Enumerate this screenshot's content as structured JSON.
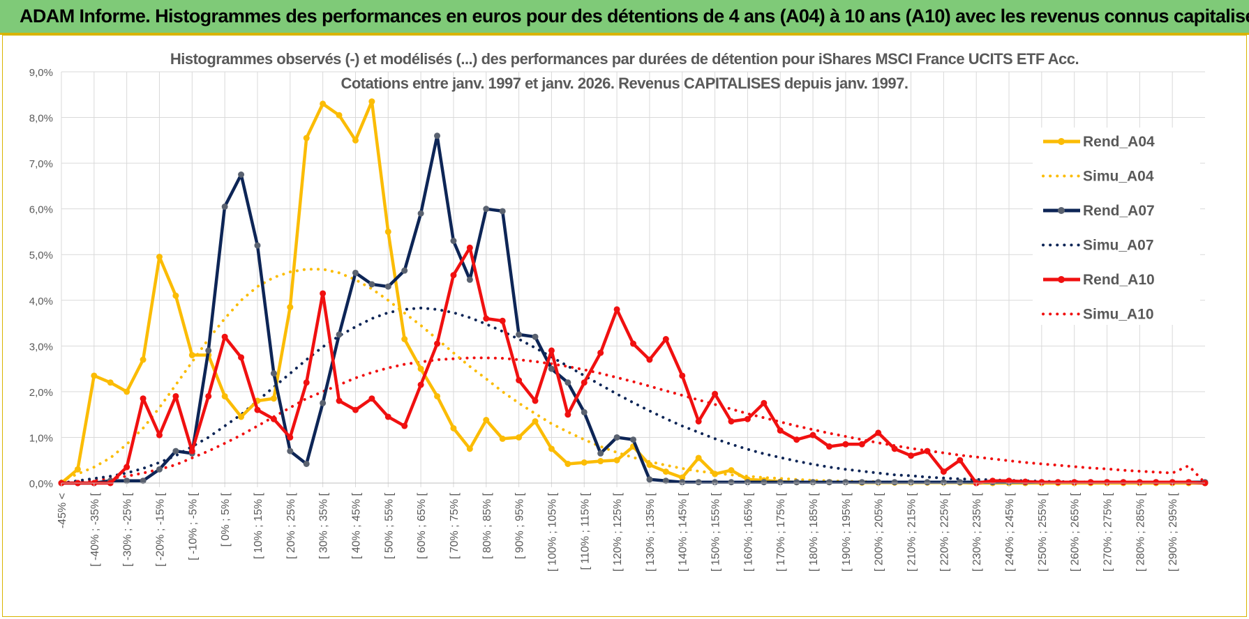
{
  "header": {
    "banner_title": "ADAM Informe. Histogrammes des performances en euros pour des détentions de 4 ans (A04) à 10 ans (A10) avec les revenus connus capitalisés"
  },
  "colors": {
    "banner_bg": "#7fca78",
    "banner_border": "#d9b400",
    "A04": "#fbbc05",
    "A07": "#0d2556",
    "A10": "#f01010",
    "marker_A07": "#5a6270",
    "grid": "#d9d9d9",
    "text": "#595959"
  },
  "chart_data": {
    "type": "line",
    "title": "Histogrammes observés (-) et modélisés (...) des performances par durées de détention pour iShares MSCI France UCITS ETF Acc.",
    "subtitle": "Cotations entre janv. 1997 et janv. 2026. Revenus CAPITALISES depuis janv. 1997.",
    "xlabel": "",
    "ylabel": "",
    "ylim": [
      0,
      9
    ],
    "y_ticks": [
      "0,0%",
      "1,0%",
      "2,0%",
      "3,0%",
      "4,0%",
      "5,0%",
      "6,0%",
      "7,0%",
      "8,0%",
      "9,0%"
    ],
    "grid": true,
    "legend_position": "right",
    "categories": [
      "-45% <",
      "[ -45% ; -40% [",
      "[ -40% ; -35% [",
      "[ -35% ; -30% [",
      "[ -30% ; -25% [",
      "[ -25% ; -20% [",
      "[ -20% ; -15% [",
      "[ -15% ; -10% [",
      "[ -10% ; -5% [",
      "[ -5% ; 0% [",
      "[ 0% ; 5% [",
      "[ 5% ; 10% [",
      "[ 10% ; 15% [",
      "[ 15% ; 20% [",
      "[ 20% ; 25% [",
      "[ 25% ; 30% [",
      "[ 30% ; 35% [",
      "[ 35% ; 40% [",
      "[ 40% ; 45% [",
      "[ 45% ; 50% [",
      "[ 50% ; 55% [",
      "[ 55% ; 60% [",
      "[ 60% ; 65% [",
      "[ 65% ; 70% [",
      "[ 70% ; 75% [",
      "[ 75% ; 80% [",
      "[ 80% ; 85% [",
      "[ 85% ; 90% [",
      "[ 90% ; 95% [",
      "[ 95% ; 100% [",
      "[ 100% ; 105% [",
      "[ 105% ; 110% [",
      "[ 110% ; 115% [",
      "[ 115% ; 120% [",
      "[ 120% ; 125% [",
      "[ 125% ; 130% [",
      "[ 130% ; 135% [",
      "[ 135% ; 140% [",
      "[ 140% ; 145% [",
      "[ 145% ; 150% [",
      "[ 150% ; 155% [",
      "[ 155% ; 160% [",
      "[ 160% ; 165% [",
      "[ 165% ; 170% [",
      "[ 170% ; 175% [",
      "[ 175% ; 180% [",
      "[ 180% ; 185% [",
      "[ 185% ; 190% [",
      "[ 190% ; 195% [",
      "[ 195% ; 200% [",
      "[ 200% ; 205% [",
      "[ 205% ; 210% [",
      "[ 210% ; 215% [",
      "[ 215% ; 220% [",
      "[ 220% ; 225% [",
      "[ 225% ; 230% [",
      "[ 230% ; 235% [",
      "[ 235% ; 240% [",
      "[ 240% ; 245% [",
      "[ 245% ; 250% [",
      "[ 250% ; 255% [",
      "[ 255% ; 260% [",
      "[ 260% ; 265% [",
      "[ 265% ; 270% [",
      "[ 270% ; 275% [",
      "[ 275% ; 280% [",
      "[ 280% ; 285% [",
      "[ 285% ; 290% [",
      "[ 290% ; 295% [",
      "[ 295% ; 300% [",
      "300% <"
    ],
    "shown_tick_labels": [
      "-45% <",
      "[ -40% ; -35% [",
      "[ -30% ; -25% [",
      "[ -20% ; -15% [",
      "[ -10% ; -5% [",
      "[ 0% ; 5% [",
      "[ 10% ; 15% [",
      "[ 20% ; 25% [",
      "[ 30% ; 35% [",
      "[ 40% ; 45% [",
      "[ 50% ; 55% [",
      "[ 60% ; 65% [",
      "[ 70% ; 75% [",
      "[ 80% ; 85% [",
      "[ 90% ; 95% [",
      "[ 100% ; 105% [",
      "[ 110% ; 115% [",
      "[ 120% ; 125% [",
      "[ 130% ; 135% [",
      "[ 140% ; 145% [",
      "[ 150% ; 155% [",
      "[ 160% ; 165% [",
      "[ 170% ; 175% [",
      "[ 180% ; 185% [",
      "[ 190% ; 195% [",
      "[ 200% ; 205% [",
      "[ 210% ; 215% [",
      "[ 220% ; 225% [",
      "[ 230% ; 235% [",
      "[ 240% ; 245% [",
      "[ 250% ; 255% [",
      "[ 260% ; 265% [",
      "[ 270% ; 275% [",
      "[ 280% ; 285% [",
      "[ 290% ; 295% ["
    ],
    "series": [
      {
        "name": "Rend_A04",
        "style": "solid",
        "color": "#fbbc05",
        "values": [
          0.0,
          0.3,
          2.35,
          2.2,
          2.0,
          2.7,
          4.95,
          4.1,
          2.8,
          2.8,
          1.9,
          1.45,
          1.8,
          1.85,
          3.85,
          7.55,
          8.3,
          8.05,
          7.5,
          8.35,
          5.5,
          3.15,
          2.5,
          1.9,
          1.2,
          0.75,
          1.38,
          0.97,
          1.0,
          1.35,
          0.75,
          0.42,
          0.45,
          0.48,
          0.5,
          0.8,
          0.4,
          0.25,
          0.12,
          0.55,
          0.2,
          0.28,
          0.08,
          0.06,
          0.03,
          0.02,
          0.02,
          0.02,
          0.02,
          0.01,
          0.01,
          0.01,
          0.01,
          0.01,
          0.01,
          0.01,
          0.0,
          0.0,
          0.0,
          0.0,
          0.0,
          0.0,
          0.0,
          0.0,
          0.0,
          0.0,
          0.0,
          0.0,
          0.0,
          0.0,
          0.0
        ]
      },
      {
        "name": "Simu_A04",
        "style": "dotted",
        "color": "#fbbc05",
        "values": [
          0.05,
          0.2,
          0.35,
          0.55,
          0.85,
          1.2,
          1.65,
          2.15,
          2.65,
          3.15,
          3.6,
          4.0,
          4.3,
          4.5,
          4.62,
          4.68,
          4.68,
          4.6,
          4.45,
          4.25,
          4.0,
          3.72,
          3.45,
          3.15,
          2.85,
          2.55,
          2.28,
          2.0,
          1.75,
          1.52,
          1.3,
          1.12,
          0.95,
          0.8,
          0.67,
          0.56,
          0.47,
          0.39,
          0.32,
          0.26,
          0.22,
          0.18,
          0.15,
          0.12,
          0.1,
          0.08,
          0.06,
          0.05,
          0.04,
          0.03,
          0.03,
          0.02,
          0.02,
          0.02,
          0.01,
          0.01,
          0.01,
          0.01,
          0.01,
          0.0,
          0.0,
          0.0,
          0.0,
          0.0,
          0.0,
          0.0,
          0.0,
          0.0,
          0.0,
          0.0,
          0.0
        ]
      },
      {
        "name": "Rend_A07",
        "style": "solid",
        "color": "#0d2556",
        "values": [
          0.0,
          0.0,
          0.0,
          0.05,
          0.05,
          0.05,
          0.3,
          0.7,
          0.65,
          2.9,
          6.05,
          6.75,
          5.2,
          2.4,
          0.7,
          0.42,
          1.75,
          3.25,
          4.6,
          4.35,
          4.3,
          4.65,
          5.9,
          7.6,
          5.3,
          4.45,
          6.0,
          5.95,
          3.25,
          3.2,
          2.5,
          2.2,
          1.55,
          0.65,
          1.0,
          0.95,
          0.08,
          0.05,
          0.02,
          0.02,
          0.02,
          0.02,
          0.02,
          0.02,
          0.02,
          0.02,
          0.02,
          0.02,
          0.02,
          0.02,
          0.02,
          0.02,
          0.02,
          0.02,
          0.02,
          0.02,
          0.02,
          0.02,
          0.02,
          0.02,
          0.02,
          0.02,
          0.02,
          0.02,
          0.02,
          0.02,
          0.02,
          0.02,
          0.02,
          0.02,
          0.02
        ]
      },
      {
        "name": "Simu_A07",
        "style": "dotted",
        "color": "#0d2556",
        "values": [
          0.0,
          0.05,
          0.1,
          0.15,
          0.22,
          0.32,
          0.45,
          0.6,
          0.8,
          1.0,
          1.25,
          1.5,
          1.8,
          2.1,
          2.4,
          2.7,
          2.98,
          3.22,
          3.42,
          3.6,
          3.73,
          3.8,
          3.83,
          3.8,
          3.73,
          3.62,
          3.48,
          3.32,
          3.15,
          2.96,
          2.76,
          2.56,
          2.35,
          2.15,
          1.95,
          1.76,
          1.58,
          1.41,
          1.25,
          1.11,
          0.97,
          0.85,
          0.74,
          0.64,
          0.56,
          0.48,
          0.41,
          0.35,
          0.3,
          0.26,
          0.22,
          0.18,
          0.16,
          0.13,
          0.11,
          0.09,
          0.08,
          0.07,
          0.06,
          0.05,
          0.04,
          0.03,
          0.03,
          0.02,
          0.02,
          0.02,
          0.01,
          0.01,
          0.01,
          0.01,
          0.01
        ]
      },
      {
        "name": "Rend_A10",
        "style": "solid",
        "color": "#f01010",
        "values": [
          0.0,
          0.0,
          0.0,
          0.0,
          0.35,
          1.85,
          1.05,
          1.9,
          0.7,
          1.9,
          3.2,
          2.75,
          1.6,
          1.4,
          1.0,
          2.2,
          4.15,
          1.8,
          1.6,
          1.85,
          1.45,
          1.25,
          2.15,
          3.05,
          4.55,
          5.15,
          3.6,
          3.55,
          2.25,
          1.8,
          2.9,
          1.5,
          2.2,
          2.85,
          3.8,
          3.05,
          2.7,
          3.15,
          2.35,
          1.35,
          1.95,
          1.35,
          1.4,
          1.75,
          1.15,
          0.95,
          1.05,
          0.8,
          0.85,
          0.85,
          1.1,
          0.75,
          0.6,
          0.7,
          0.25,
          0.5,
          0.0,
          0.05,
          0.05,
          0.03,
          0.02,
          0.02,
          0.02,
          0.02,
          0.02,
          0.02,
          0.02,
          0.02,
          0.02,
          0.02,
          0.0
        ]
      },
      {
        "name": "Simu_A10",
        "style": "dotted",
        "color": "#f01010",
        "values": [
          0.0,
          0.03,
          0.06,
          0.1,
          0.15,
          0.22,
          0.3,
          0.4,
          0.55,
          0.7,
          0.87,
          1.05,
          1.25,
          1.45,
          1.65,
          1.85,
          2.0,
          2.15,
          2.3,
          2.42,
          2.52,
          2.6,
          2.65,
          2.7,
          2.72,
          2.74,
          2.74,
          2.73,
          2.7,
          2.66,
          2.61,
          2.55,
          2.48,
          2.4,
          2.31,
          2.22,
          2.12,
          2.02,
          1.92,
          1.82,
          1.72,
          1.62,
          1.52,
          1.43,
          1.34,
          1.25,
          1.17,
          1.09,
          1.02,
          0.95,
          0.88,
          0.82,
          0.76,
          0.71,
          0.66,
          0.61,
          0.57,
          0.53,
          0.49,
          0.45,
          0.42,
          0.39,
          0.36,
          0.33,
          0.31,
          0.28,
          0.26,
          0.24,
          0.22,
          0.38,
          0.0
        ]
      }
    ]
  }
}
